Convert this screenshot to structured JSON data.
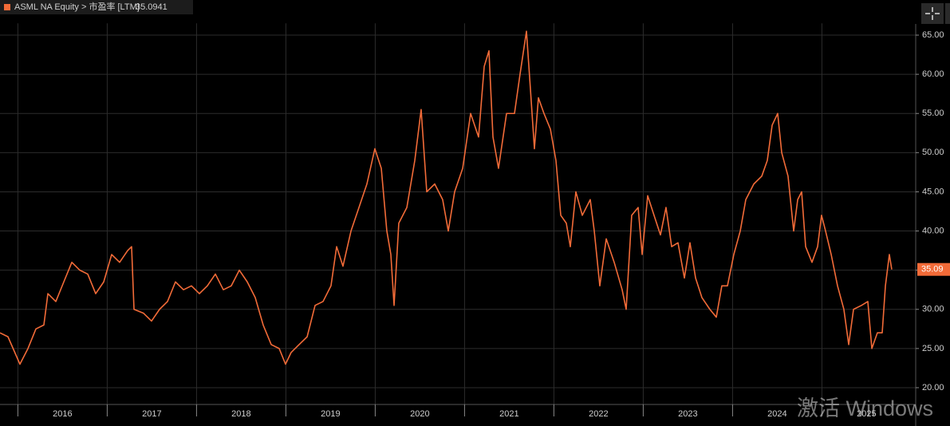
{
  "chart_data": {
    "type": "line",
    "title": "ASML NA Equity > 市盈率 [LTM]",
    "last_value_label": "35.09",
    "watermark": "激活 Windows",
    "xlim": [
      2015.8,
      2026.05
    ],
    "xticks": [
      {
        "value": 2016,
        "label": "2016"
      },
      {
        "value": 2017,
        "label": "2017"
      },
      {
        "value": 2018,
        "label": "2018"
      },
      {
        "value": 2019,
        "label": "2019"
      },
      {
        "value": 2020,
        "label": "2020"
      },
      {
        "value": 2021,
        "label": "2021"
      },
      {
        "value": 2022,
        "label": "2022"
      },
      {
        "value": 2023,
        "label": "2023"
      },
      {
        "value": 2024,
        "label": "2024"
      },
      {
        "value": 2025,
        "label": "2025"
      }
    ],
    "ylim": [
      18,
      66.5
    ],
    "yticks": [
      {
        "value": 20,
        "label": "20.00"
      },
      {
        "value": 25,
        "label": "25.00"
      },
      {
        "value": 30,
        "label": "30.00"
      },
      {
        "value": 35,
        "label": "35.00"
      },
      {
        "value": 40,
        "label": "40.00"
      },
      {
        "value": 45,
        "label": "45.00"
      },
      {
        "value": 50,
        "label": "50.00"
      },
      {
        "value": 55,
        "label": "55.00"
      },
      {
        "value": 60,
        "label": "60.00"
      },
      {
        "value": 65,
        "label": "65.00"
      }
    ],
    "grid": true,
    "series": [
      {
        "name": "ASML NA Equity > 市盈率 [LTM]",
        "color": "#f26b38",
        "x": [
          2015.8,
          2015.889,
          2016.023,
          2016.113,
          2016.202,
          2016.291,
          2016.336,
          2016.425,
          2016.514,
          2016.604,
          2016.693,
          2016.782,
          2016.871,
          2016.961,
          2017.05,
          2017.139,
          2017.229,
          2017.273,
          2017.3,
          2017.407,
          2017.496,
          2017.586,
          2017.675,
          2017.764,
          2017.854,
          2017.943,
          2018.032,
          2018.121,
          2018.211,
          2018.3,
          2018.389,
          2018.479,
          2018.568,
          2018.657,
          2018.746,
          2018.836,
          2018.925,
          2018.996,
          2019.059,
          2019.148,
          2019.238,
          2019.327,
          2019.416,
          2019.505,
          2019.568,
          2019.639,
          2019.729,
          2019.818,
          2019.907,
          2019.996,
          2020.068,
          2020.13,
          2020.175,
          2020.211,
          2020.264,
          2020.354,
          2020.443,
          2020.514,
          2020.577,
          2020.666,
          2020.755,
          2020.818,
          2020.889,
          2020.979,
          2021.068,
          2021.157,
          2021.22,
          2021.273,
          2021.318,
          2021.38,
          2021.47,
          2021.559,
          2021.621,
          2021.693,
          2021.738,
          2021.782,
          2021.827,
          2021.889,
          2021.961,
          2022.023,
          2022.077,
          2022.139,
          2022.184,
          2022.246,
          2022.318,
          2022.407,
          2022.452,
          2022.514,
          2022.586,
          2022.675,
          2022.764,
          2022.809,
          2022.871,
          2022.943,
          2022.988,
          2023.05,
          2023.121,
          2023.193,
          2023.255,
          2023.318,
          2023.389,
          2023.461,
          2023.523,
          2023.586,
          2023.657,
          2023.746,
          2023.818,
          2023.88,
          2023.943,
          2024.014,
          2024.086,
          2024.148,
          2024.238,
          2024.327,
          2024.389,
          2024.443,
          2024.505,
          2024.55,
          2024.621,
          2024.684,
          2024.729,
          2024.773,
          2024.818,
          2024.889,
          2024.952,
          2024.996,
          2025.041,
          2025.104,
          2025.175,
          2025.246,
          2025.3,
          2025.354,
          2025.443,
          2025.514,
          2025.559,
          2025.621,
          2025.675,
          2025.711,
          2025.755,
          2025.782
        ],
        "values": [
          27,
          26.5,
          23,
          25,
          27.5,
          28,
          32,
          31,
          33.5,
          36,
          35,
          34.5,
          32,
          33.5,
          37,
          36,
          37.5,
          38,
          30,
          29.5,
          28.5,
          30,
          31,
          33.5,
          32.5,
          33,
          32,
          33,
          34.5,
          32.5,
          33,
          35,
          33.5,
          31.5,
          28,
          25.5,
          25,
          23,
          24.5,
          25.5,
          26.5,
          30.5,
          31,
          33,
          38,
          35.5,
          40,
          43,
          46,
          50.5,
          48,
          40,
          37,
          30.5,
          41,
          43,
          49,
          55.5,
          45,
          46,
          44,
          40,
          45,
          48,
          55,
          52,
          61,
          63,
          52,
          48,
          55,
          55,
          60,
          65.5,
          58,
          50.5,
          57,
          55,
          53,
          49,
          42,
          41,
          38,
          45,
          42,
          44,
          40,
          33,
          39,
          36,
          32.5,
          30,
          42,
          43,
          37,
          44.5,
          42,
          39.5,
          43,
          38,
          38.5,
          34,
          38.5,
          34,
          31.5,
          30,
          29,
          33,
          33,
          37,
          40,
          44,
          46,
          47,
          49,
          53.5,
          55,
          50,
          47,
          40,
          44,
          45,
          38,
          36,
          38,
          42,
          40,
          37,
          33,
          30,
          25.5,
          30,
          30.5,
          31,
          25,
          27,
          27,
          33,
          37,
          35.0941
        ]
      }
    ]
  }
}
